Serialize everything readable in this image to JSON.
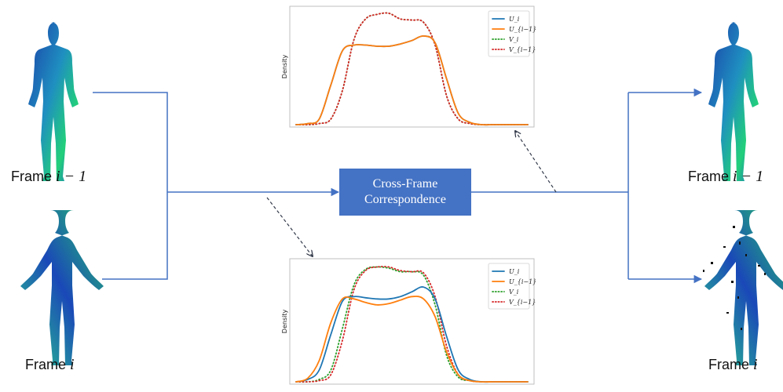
{
  "center_box": {
    "line1": "Cross-Frame",
    "line2": "Correspondence"
  },
  "frames": {
    "left_top": {
      "prefix": "Frame ",
      "var": "i − 1"
    },
    "left_bottom": {
      "prefix": "Frame ",
      "var": "i"
    },
    "right_top": {
      "prefix": "Frame ",
      "var": "i − 1"
    },
    "right_bottom": {
      "prefix": "Frame ",
      "var": "i"
    }
  },
  "colors": {
    "connector": "#4472c4",
    "box": "#4472c4",
    "U_i": "#1f77b4",
    "U_im1": "#ff7f0e",
    "V_i": "#2ca02c",
    "V_im1": "#d62728"
  },
  "chart_data": [
    {
      "type": "line",
      "ylabel": "Density",
      "xlabel": "",
      "legend": "top-right",
      "x": [
        0,
        1,
        2,
        3,
        4,
        5,
        6,
        7,
        8,
        9,
        10,
        11,
        12,
        13,
        14,
        15,
        16,
        17,
        18,
        19,
        20
      ],
      "series": [
        {
          "name": "U_i",
          "legend_label": "U_i",
          "style": "solid",
          "values": [
            0,
            0.01,
            0.05,
            0.35,
            0.65,
            0.7,
            0.7,
            0.69,
            0.69,
            0.71,
            0.74,
            0.78,
            0.72,
            0.4,
            0.1,
            0.02,
            0,
            0,
            0,
            0,
            0
          ]
        },
        {
          "name": "U_{i-1}",
          "legend_label": "U_{i−1}",
          "style": "solid",
          "values": [
            0,
            0.01,
            0.05,
            0.35,
            0.65,
            0.7,
            0.7,
            0.69,
            0.69,
            0.71,
            0.74,
            0.78,
            0.72,
            0.4,
            0.1,
            0.02,
            0,
            0,
            0,
            0,
            0
          ]
        },
        {
          "name": "V_i",
          "legend_label": "V_i",
          "style": "dotted",
          "values": [
            0,
            0,
            0.01,
            0.05,
            0.3,
            0.75,
            0.93,
            0.97,
            0.98,
            0.93,
            0.92,
            0.9,
            0.7,
            0.25,
            0.05,
            0.01,
            0,
            0,
            0,
            0,
            0
          ]
        },
        {
          "name": "V_{i-1}",
          "legend_label": "V_{i−1}",
          "style": "dotted",
          "values": [
            0,
            0,
            0.01,
            0.05,
            0.3,
            0.75,
            0.93,
            0.97,
            0.98,
            0.93,
            0.92,
            0.9,
            0.7,
            0.25,
            0.05,
            0.01,
            0,
            0,
            0,
            0,
            0
          ]
        }
      ]
    },
    {
      "type": "line",
      "ylabel": "Density",
      "xlabel": "",
      "legend": "top-right",
      "x": [
        0,
        1,
        2,
        3,
        4,
        5,
        6,
        7,
        8,
        9,
        10,
        11,
        12,
        13,
        14,
        15,
        16,
        17,
        18,
        19,
        20
      ],
      "series": [
        {
          "name": "U_i",
          "legend_label": "U_i",
          "style": "solid",
          "values": [
            0,
            0.02,
            0.1,
            0.4,
            0.68,
            0.72,
            0.71,
            0.7,
            0.7,
            0.72,
            0.76,
            0.8,
            0.7,
            0.38,
            0.1,
            0.02,
            0,
            0,
            0,
            0,
            0
          ]
        },
        {
          "name": "U_{i-1}",
          "legend_label": "U_{i−1}",
          "style": "solid",
          "values": [
            0,
            0.03,
            0.18,
            0.5,
            0.7,
            0.7,
            0.67,
            0.65,
            0.66,
            0.69,
            0.72,
            0.7,
            0.55,
            0.25,
            0.06,
            0.01,
            0,
            0,
            0,
            0,
            0
          ]
        },
        {
          "name": "V_i",
          "legend_label": "V_i",
          "style": "dotted",
          "values": [
            0,
            0,
            0.02,
            0.1,
            0.45,
            0.82,
            0.95,
            0.97,
            0.96,
            0.93,
            0.93,
            0.9,
            0.65,
            0.22,
            0.04,
            0.01,
            0,
            0,
            0,
            0,
            0
          ]
        },
        {
          "name": "V_{i-1}",
          "legend_label": "V_{i−1}",
          "style": "dotted",
          "values": [
            0,
            0,
            0.01,
            0.06,
            0.35,
            0.78,
            0.94,
            0.97,
            0.97,
            0.94,
            0.93,
            0.92,
            0.72,
            0.3,
            0.06,
            0.01,
            0,
            0,
            0,
            0,
            0
          ]
        }
      ]
    }
  ]
}
